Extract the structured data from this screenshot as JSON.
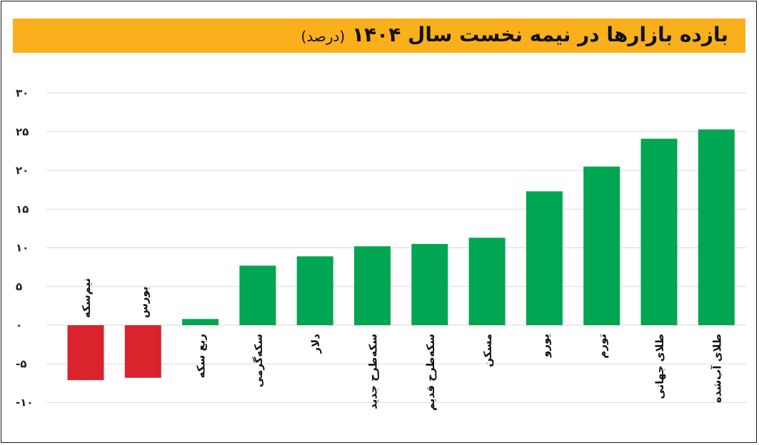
{
  "chart_data": {
    "type": "bar",
    "title": "بازده بازارها در نیمه نخست سال ۱۴۰۴",
    "unit": "(درصد)",
    "categories": [
      "نیم‌سکه",
      "بورس",
      "ربع سکه",
      "سکه‌گرمی",
      "دلار",
      "سکه‌طرح جدید",
      "سکه‌طرح قدیم",
      "مسکن",
      "یورو",
      "تورم",
      "طلای جهانی",
      "طلای آب‌شده"
    ],
    "values": [
      -7.1,
      -6.8,
      0.8,
      7.7,
      8.9,
      10.2,
      10.5,
      11.3,
      17.3,
      20.5,
      24.1,
      25.3
    ],
    "yticks": [
      "۳۰",
      "۲۵",
      "۲۰",
      "۱۵",
      "۱۰",
      "۵",
      "۰",
      "-۵",
      "-۱۰"
    ],
    "ytick_values": [
      30,
      25,
      20,
      15,
      10,
      5,
      0,
      -5,
      -10
    ],
    "ylim": [
      -12,
      30
    ],
    "colors": {
      "positive": "#00a651",
      "negative": "#d9232d",
      "title_bg": "#f9b01c",
      "grid": "#d9d9d9"
    }
  }
}
